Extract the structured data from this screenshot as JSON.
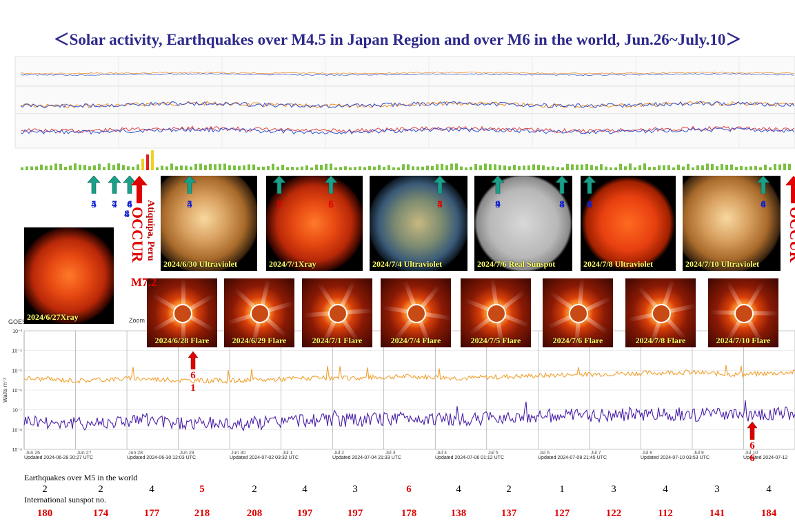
{
  "title": "＜Solar activity, Earthquakes over M4.5 in Japan Region and over M6 in the world, Jun.26~July.10＞",
  "sun_images": [
    {
      "caption": "2024/6/27Xray",
      "style": "xray"
    },
    {
      "caption": "2024/6/30 Ultraviolet",
      "style": "uv"
    },
    {
      "caption": "2024/7/1Xray",
      "style": "xray"
    },
    {
      "caption": "2024/7/4 Ultraviolet",
      "style": "uvblue"
    },
    {
      "caption": "2024/7/6 Real Sunspot",
      "style": "white"
    },
    {
      "caption": "2024/7/8 Ultraviolet",
      "style": "red"
    },
    {
      "caption": "2024/7/10 Ultraviolet",
      "style": "uv"
    }
  ],
  "flare_images": [
    {
      "caption": "2024/6/28 Flare"
    },
    {
      "caption": "2024/6/29 Flare"
    },
    {
      "caption": "2024/7/1 Flare"
    },
    {
      "caption": "2024/7/4 Flare"
    },
    {
      "caption": "2024/7/5 Flare"
    },
    {
      "caption": "2024/7/6 Flare"
    },
    {
      "caption": "2024/7/8 Flare"
    },
    {
      "caption": "2024/7/10 Flare"
    }
  ],
  "quake_markers": [
    {
      "d1": "4",
      "d2": "5",
      "color": "blue"
    },
    {
      "d1": "4",
      "d2": "7",
      "color": "blue"
    },
    {
      "d1": "4",
      "d2": "6",
      "color": "blue"
    },
    {
      "d1": "4",
      "d2": "8",
      "color": "blue"
    },
    {
      "d1": "4",
      "d2": "5",
      "color": "blue"
    },
    {
      "d1": "5",
      "d2": "3",
      "color": "red"
    },
    {
      "d1": "5",
      "d2": "6",
      "color": "red"
    },
    {
      "d1": "5",
      "d2": "4",
      "color": "red"
    },
    {
      "d1": "4",
      "d2": "9",
      "color": "blue"
    },
    {
      "d1": "4",
      "d2": "8",
      "color": "blue"
    },
    {
      "d1": "4",
      "d2": "6",
      "color": "blue"
    },
    {
      "d1": "4",
      "d2": "6",
      "color": "blue"
    }
  ],
  "occur_text": "OCCUR",
  "occur_mag": "M7.2",
  "occur_place": "Atiquipa, Peru",
  "occur_right": "OCCUR",
  "red_markers": [
    {
      "d1": "6",
      "d2": "1"
    },
    {
      "d1": "6",
      "d2": "6"
    }
  ],
  "xray_plot": {
    "goes_label": "GOES",
    "ylabel": "Watts m⁻²",
    "zoom_label": "Zoom",
    "yticks": [
      "10⁻³",
      "10⁻⁴",
      "10⁻⁵",
      "10⁻⁶",
      "10⁻⁷",
      "10⁻⁸",
      "10⁻⁹"
    ],
    "xticks": [
      "Jun 26",
      "Jun 27",
      "Jun 28",
      "Jun 29",
      "Jun 30",
      "Jul 1",
      "Jul 2",
      "Jul 3",
      "Jul 4",
      "Jul 5",
      "Jul 6",
      "Jul 7",
      "Jul 8",
      "Jul 9",
      "Jul 10"
    ],
    "updates": [
      "Updated 2024-06-28 20:27 UTC",
      "Updated 2024-06-30 12:03 UTC",
      "Updated 2024-07-02 03:32 UTC",
      "Updated 2024-07-04 21:33 UTC",
      "Updated 2024-07-06 01:12 UTC",
      "Updated 2024-07-08 21:45 UTC",
      "Updated 2024-07-10 03:53 UTC",
      "Updated 2024-07-12"
    ]
  },
  "bottom_table": {
    "quake_label": "Earthquakes over M5 in the world",
    "sunspot_label": "International sunspot no.",
    "quakes": [
      {
        "v": "2",
        "hl": false
      },
      {
        "v": "2",
        "hl": false
      },
      {
        "v": "4",
        "hl": false
      },
      {
        "v": "5",
        "hl": true
      },
      {
        "v": "2",
        "hl": false
      },
      {
        "v": "4",
        "hl": false
      },
      {
        "v": "3",
        "hl": false
      },
      {
        "v": "6",
        "hl": true
      },
      {
        "v": "4",
        "hl": false
      },
      {
        "v": "2",
        "hl": false
      },
      {
        "v": "1",
        "hl": false
      },
      {
        "v": "3",
        "hl": false
      },
      {
        "v": "4",
        "hl": false
      },
      {
        "v": "3",
        "hl": false
      },
      {
        "v": "4",
        "hl": false
      }
    ],
    "sunspots": [
      "180",
      "174",
      "177",
      "218",
      "208",
      "197",
      "197",
      "178",
      "138",
      "137",
      "127",
      "122",
      "112",
      "141",
      "184"
    ]
  },
  "chart_data": {
    "type": "line",
    "title": "",
    "ylabel": "Watts m⁻²",
    "yscale": "log",
    "ylim": [
      1e-09,
      0.001
    ],
    "x": [
      "Jun 26",
      "Jun 27",
      "Jun 28",
      "Jun 29",
      "Jun 30",
      "Jul 1",
      "Jul 2",
      "Jul 3",
      "Jul 4",
      "Jul 5",
      "Jul 6",
      "Jul 7",
      "Jul 8",
      "Jul 9",
      "Jul 10"
    ],
    "series": [
      {
        "name": "",
        "color": "#f0a030",
        "values": [
          4e-06,
          3e-06,
          4e-06,
          3e-06,
          3e-06,
          4e-06,
          4e-06,
          5e-06,
          4e-06,
          5e-06,
          6e-06,
          7e-06,
          8e-06,
          6e-06,
          8e-06
        ]
      },
      {
        "name": "",
        "color": "#4a1fa8",
        "values": [
          3e-08,
          2e-08,
          3e-08,
          2e-08,
          2e-08,
          3e-08,
          3e-08,
          4e-08,
          3e-08,
          5e-08,
          5e-08,
          6e-08,
          6e-08,
          5e-08,
          7e-08
        ]
      }
    ],
    "grid": true
  },
  "colors": {
    "title": "#2e2a8c",
    "red": "#e00000",
    "blue": "#1020d0",
    "green": "#1aa088",
    "orange": "#f0a030",
    "purple": "#4a1fa8"
  }
}
